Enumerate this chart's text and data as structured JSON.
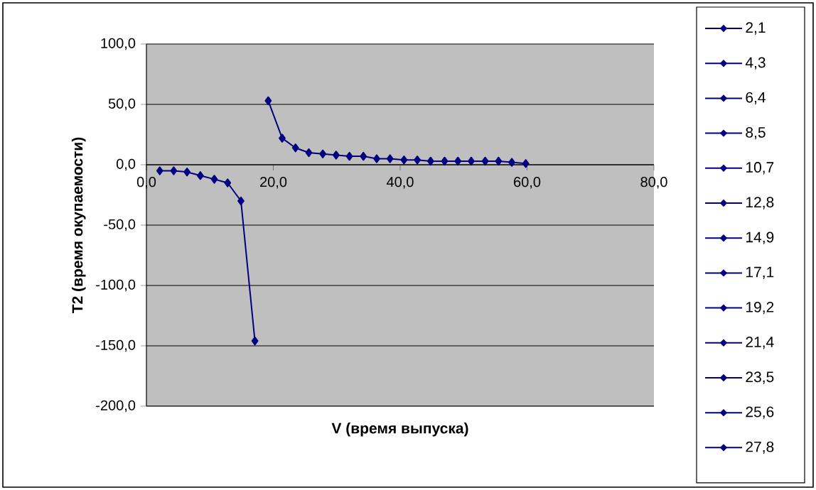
{
  "chart_data": {
    "type": "line",
    "xlabel": "V (время выпуска)",
    "ylabel": "T2 (время окупаемости)",
    "xlim": [
      0,
      80
    ],
    "ylim": [
      -200,
      100
    ],
    "xticks": [
      {
        "value": 0,
        "label": "0,0"
      },
      {
        "value": 20,
        "label": "20,0"
      },
      {
        "value": 40,
        "label": "40,0"
      },
      {
        "value": 60,
        "label": "60,0"
      },
      {
        "value": 80,
        "label": "80,0"
      }
    ],
    "yticks": [
      {
        "value": -200,
        "label": "-200,0"
      },
      {
        "value": -150,
        "label": "-150,0"
      },
      {
        "value": -100,
        "label": "-100,0"
      },
      {
        "value": -50,
        "label": "-50,0"
      },
      {
        "value": 0,
        "label": "0,0"
      },
      {
        "value": 50,
        "label": "50,0"
      },
      {
        "value": 100,
        "label": "100,0"
      }
    ],
    "grid": "y",
    "marker": "diamond",
    "line_style": "solid",
    "series": [
      {
        "color": "#000080",
        "x": [
          2.1,
          4.3,
          6.4,
          8.5,
          10.7,
          12.8,
          14.9,
          17.1
        ],
        "values": [
          -5,
          -5,
          -6,
          -9,
          -12,
          -15,
          -30,
          -146
        ]
      },
      {
        "color": "#000080",
        "x": [
          19.2,
          21.4,
          23.5,
          25.6,
          27.8,
          29.9,
          32.0,
          34.2,
          36.3,
          38.4,
          40.6,
          42.7,
          44.8,
          47.0,
          49.1,
          51.2,
          53.4,
          55.5,
          57.6,
          59.8
        ],
        "values": [
          53,
          22,
          14,
          10,
          9,
          8,
          7,
          7,
          5,
          5,
          4,
          4,
          3,
          3,
          3,
          3,
          3,
          3,
          2,
          1
        ]
      }
    ],
    "annotations": [
      "2,1",
      "4,3",
      "6,4",
      "8,5",
      "10,7",
      "12,8",
      "14,9",
      "17,1",
      "19,2",
      "21,4",
      "23,5",
      "25,6",
      "27,8"
    ]
  }
}
